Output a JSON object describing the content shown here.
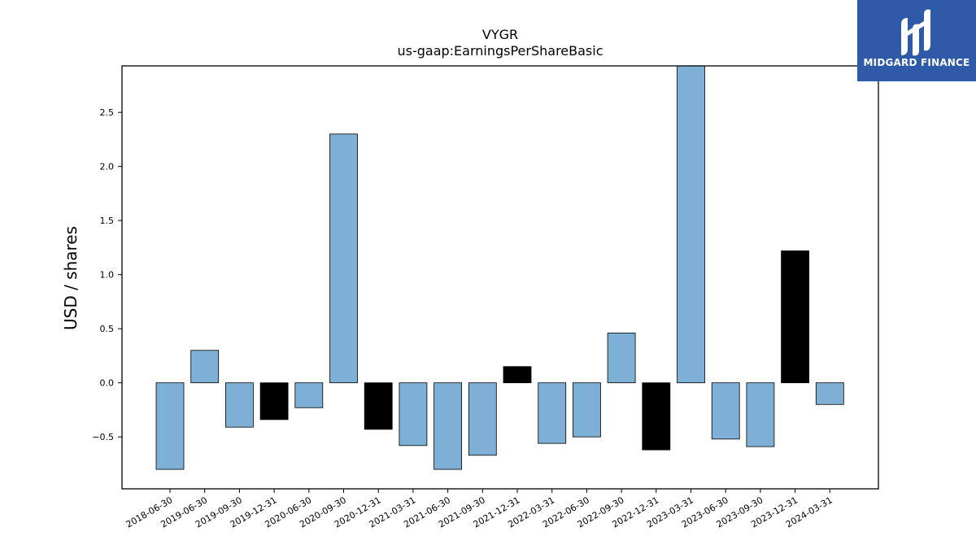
{
  "chart_data": {
    "type": "bar",
    "title": "VYGR",
    "subtitle": "us-gaap:EarningsPerShareBasic",
    "xlabel": "",
    "ylabel": "USD / shares",
    "ylim": [
      -0.98,
      2.93
    ],
    "yticks": [
      -0.5,
      0.0,
      0.5,
      1.0,
      1.5,
      2.0,
      2.5
    ],
    "ytick_labels": [
      "−0.5",
      "0.0",
      "0.5",
      "1.0",
      "1.5",
      "2.0",
      "2.5"
    ],
    "grid": false,
    "colors": {
      "quarterly": "#7eb0d5",
      "annual": "#000000"
    },
    "categories": [
      "2018-06-30",
      "2019-06-30",
      "2019-09-30",
      "2019-12-31",
      "2020-06-30",
      "2020-09-30",
      "2020-12-31",
      "2021-03-31",
      "2021-06-30",
      "2021-09-30",
      "2021-12-31",
      "2022-03-31",
      "2022-06-30",
      "2022-09-30",
      "2022-12-31",
      "2023-03-31",
      "2023-06-30",
      "2023-09-30",
      "2023-12-31",
      "2024-03-31"
    ],
    "values": [
      -0.8,
      0.3,
      -0.41,
      -0.34,
      -0.23,
      2.3,
      -0.43,
      -0.58,
      -0.8,
      -0.67,
      0.15,
      -0.56,
      -0.5,
      0.46,
      -0.62,
      2.93,
      -0.52,
      -0.59,
      1.22,
      -0.2
    ],
    "bar_colors": [
      "quarterly",
      "quarterly",
      "quarterly",
      "annual",
      "quarterly",
      "quarterly",
      "annual",
      "quarterly",
      "quarterly",
      "quarterly",
      "annual",
      "quarterly",
      "quarterly",
      "quarterly",
      "annual",
      "quarterly",
      "quarterly",
      "quarterly",
      "annual",
      "quarterly"
    ]
  },
  "logo": {
    "text": "MIDGARD FINANCE",
    "icon": "midgard-logo-icon"
  }
}
